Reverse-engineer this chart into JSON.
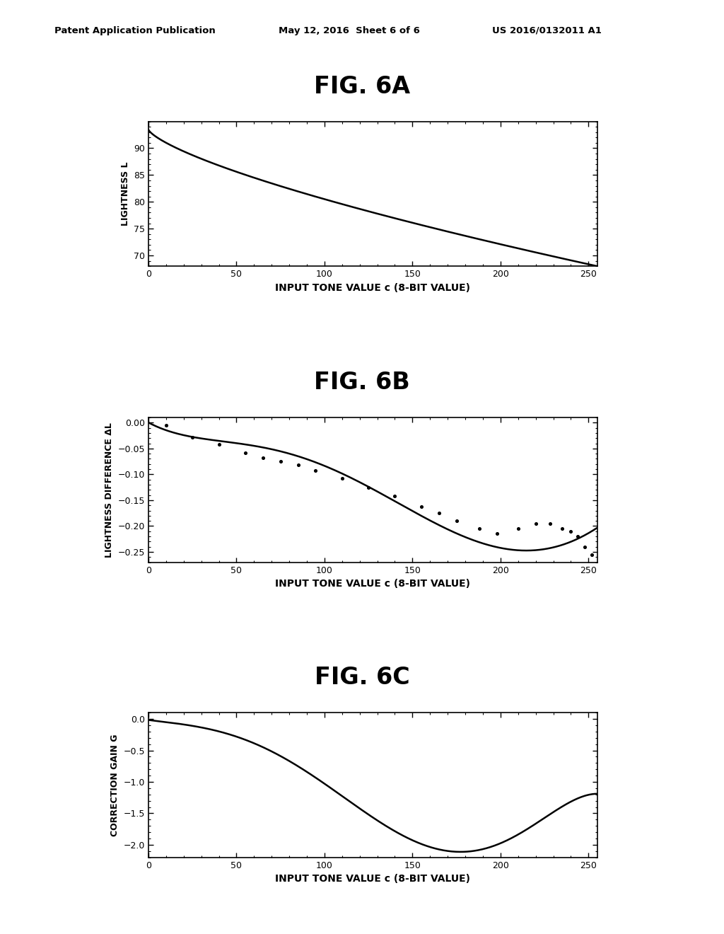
{
  "header_left": "Patent Application Publication",
  "header_mid": "May 12, 2016  Sheet 6 of 6",
  "header_right": "US 2016/0132011 A1",
  "fig_titles": [
    "FIG. 6A",
    "FIG. 6B",
    "FIG. 6C"
  ],
  "fig6a": {
    "ylabel": "LIGHTNESS L",
    "xlabel": "INPUT TONE VALUE c (8-BIT VALUE)",
    "xlim": [
      0,
      255
    ],
    "ylim": [
      68,
      95
    ],
    "yticks": [
      70,
      75,
      80,
      85,
      90
    ],
    "xticks": [
      0,
      50,
      100,
      150,
      200,
      250
    ]
  },
  "fig6b": {
    "ylabel": "LIGHTNESS DIFFERENCE ΔL",
    "xlabel": "INPUT TONE VALUE c (8-BIT VALUE)",
    "xlim": [
      0,
      255
    ],
    "ylim": [
      -0.27,
      0.01
    ],
    "yticks": [
      0.0,
      -0.05,
      -0.1,
      -0.15,
      -0.2,
      -0.25
    ],
    "xticks": [
      0,
      50,
      100,
      150,
      200,
      250
    ]
  },
  "fig6c": {
    "ylabel": "CORRECTION GAIN G",
    "xlabel": "INPUT TONE VALUE c (8-BIT VALUE)",
    "xlim": [
      0,
      255
    ],
    "ylim": [
      -2.2,
      0.1
    ],
    "yticks": [
      0.0,
      -0.5,
      -1.0,
      -1.5,
      -2.0
    ],
    "xticks": [
      0,
      50,
      100,
      150,
      200,
      250
    ]
  },
  "background_color": "#ffffff",
  "line_color": "#000000",
  "dot_color": "#000000",
  "scatter_x": [
    10,
    25,
    40,
    55,
    65,
    75,
    85,
    95,
    110,
    125,
    140,
    155,
    165,
    175,
    188,
    198,
    210,
    220,
    228,
    235,
    240,
    244,
    248,
    252
  ],
  "scatter_y": [
    -0.005,
    -0.028,
    -0.042,
    -0.058,
    -0.068,
    -0.075,
    -0.082,
    -0.092,
    -0.108,
    -0.125,
    -0.142,
    -0.162,
    -0.175,
    -0.19,
    -0.205,
    -0.215,
    -0.205,
    -0.195,
    -0.195,
    -0.205,
    -0.21,
    -0.22,
    -0.24,
    -0.255
  ]
}
